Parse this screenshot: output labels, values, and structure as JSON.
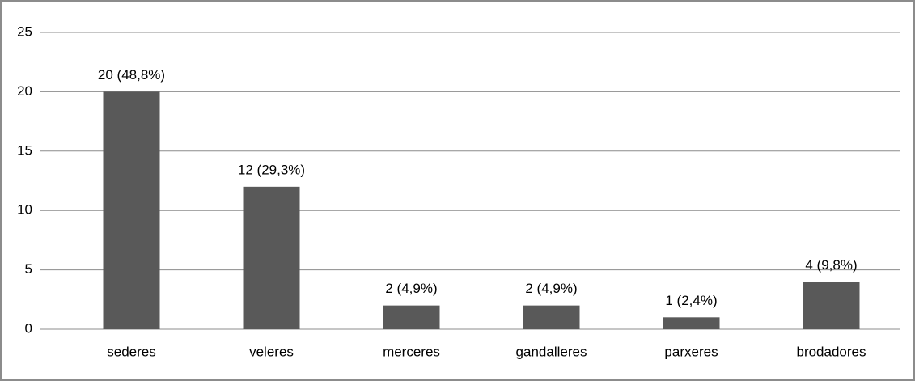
{
  "chart_data": {
    "type": "bar",
    "categories": [
      "sederes",
      "veleres",
      "merceres",
      "gandalleres",
      "parxeres",
      "brodadores"
    ],
    "values": [
      20,
      12,
      2,
      2,
      1,
      4
    ],
    "value_labels": [
      "20 (48,8%)",
      "12 (29,3%)",
      "2 (4,9%)",
      "2 (4,9%)",
      "1 (2,4%)",
      "4 (9,8%)"
    ],
    "color": "#595959",
    "ylim": [
      0,
      25
    ],
    "yticks": [
      0,
      5,
      10,
      15,
      20,
      25
    ],
    "grid": true
  }
}
